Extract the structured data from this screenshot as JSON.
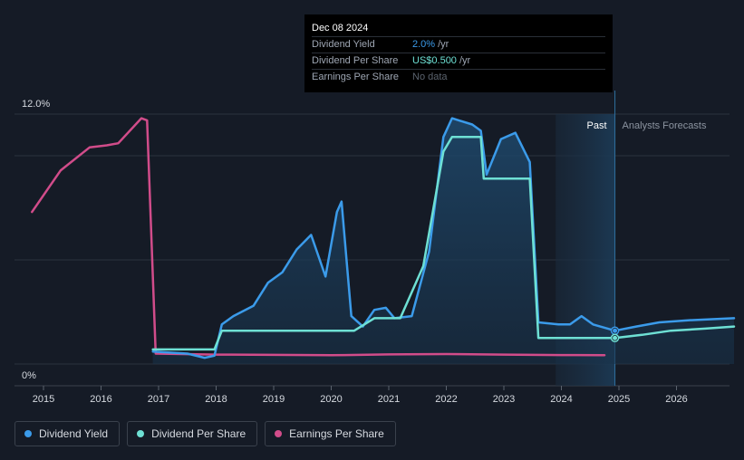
{
  "tooltip": {
    "date": "Dec 08 2024",
    "rows": [
      {
        "label": "Dividend Yield",
        "value": "2.0%",
        "unit": "/yr"
      },
      {
        "label": "Dividend Per Share",
        "value": "US$0.500",
        "unit": "/yr"
      },
      {
        "label": "Earnings Per Share",
        "value": "No data",
        "unit": ""
      }
    ]
  },
  "regions": {
    "past_label": "Past",
    "forecast_label": "Analysts Forecasts"
  },
  "legend": [
    {
      "label": "Dividend Yield",
      "color": "#3b9bea"
    },
    {
      "label": "Dividend Per Share",
      "color": "#6ee0d4"
    },
    {
      "label": "Earnings Per Share",
      "color": "#d14c8a"
    }
  ],
  "chart_data": {
    "type": "line",
    "y_axis": {
      "min": 0,
      "max": 12,
      "tick_labels": [
        "12.0%",
        "0%"
      ],
      "gridlines": [
        0,
        5,
        10,
        12
      ]
    },
    "x_axis": {
      "min": 2014.8,
      "max": 2027.0,
      "ticks": [
        2015,
        2016,
        2017,
        2018,
        2019,
        2020,
        2021,
        2022,
        2023,
        2024,
        2025,
        2026
      ]
    },
    "past_region": {
      "start": 2023.9,
      "end": 2024.93
    },
    "series": [
      {
        "name": "Dividend Yield",
        "color": "#3b9bea",
        "points": [
          [
            2016.9,
            0.6
          ],
          [
            2017.5,
            0.5
          ],
          [
            2017.8,
            0.3
          ],
          [
            2017.97,
            0.4
          ],
          [
            2018.1,
            1.9
          ],
          [
            2018.3,
            2.3
          ],
          [
            2018.65,
            2.8
          ],
          [
            2018.9,
            3.9
          ],
          [
            2019.15,
            4.4
          ],
          [
            2019.4,
            5.5
          ],
          [
            2019.65,
            6.2
          ],
          [
            2019.9,
            4.2
          ],
          [
            2020.1,
            7.3
          ],
          [
            2020.18,
            7.8
          ],
          [
            2020.35,
            2.3
          ],
          [
            2020.55,
            1.8
          ],
          [
            2020.75,
            2.6
          ],
          [
            2020.95,
            2.7
          ],
          [
            2021.1,
            2.2
          ],
          [
            2021.4,
            2.3
          ],
          [
            2021.7,
            5.4
          ],
          [
            2021.95,
            10.9
          ],
          [
            2022.1,
            11.8
          ],
          [
            2022.45,
            11.5
          ],
          [
            2022.6,
            11.2
          ],
          [
            2022.7,
            9.1
          ],
          [
            2022.95,
            10.8
          ],
          [
            2023.2,
            11.1
          ],
          [
            2023.45,
            9.7
          ],
          [
            2023.6,
            2.0
          ],
          [
            2023.95,
            1.9
          ],
          [
            2024.15,
            1.9
          ],
          [
            2024.35,
            2.3
          ],
          [
            2024.55,
            1.9
          ],
          [
            2024.93,
            1.6
          ],
          [
            2025.3,
            1.8
          ],
          [
            2025.7,
            2.0
          ],
          [
            2026.2,
            2.1
          ],
          [
            2027.0,
            2.2
          ]
        ]
      },
      {
        "name": "Dividend Per Share",
        "color": "#6ee0d4",
        "points": [
          [
            2016.9,
            0.7
          ],
          [
            2017.97,
            0.7
          ],
          [
            2018.1,
            1.6
          ],
          [
            2020.4,
            1.6
          ],
          [
            2020.75,
            2.2
          ],
          [
            2021.2,
            2.2
          ],
          [
            2021.6,
            4.7
          ],
          [
            2021.95,
            10.2
          ],
          [
            2022.1,
            10.9
          ],
          [
            2022.6,
            10.9
          ],
          [
            2022.65,
            8.9
          ],
          [
            2023.45,
            8.9
          ],
          [
            2023.6,
            1.25
          ],
          [
            2024.93,
            1.25
          ],
          [
            2025.4,
            1.4
          ],
          [
            2025.9,
            1.6
          ],
          [
            2026.5,
            1.7
          ],
          [
            2027.0,
            1.8
          ]
        ]
      },
      {
        "name": "Earnings Per Share",
        "color": "#d14c8a",
        "points": [
          [
            2014.8,
            7.3
          ],
          [
            2015.3,
            9.3
          ],
          [
            2015.8,
            10.4
          ],
          [
            2016.1,
            10.5
          ],
          [
            2016.3,
            10.6
          ],
          [
            2016.7,
            11.8
          ],
          [
            2016.8,
            11.7
          ],
          [
            2016.95,
            0.5
          ],
          [
            2018.0,
            0.45
          ],
          [
            2019.0,
            0.44
          ],
          [
            2020.0,
            0.42
          ],
          [
            2021.0,
            0.46
          ],
          [
            2022.0,
            0.48
          ],
          [
            2023.0,
            0.45
          ],
          [
            2024.0,
            0.43
          ],
          [
            2024.75,
            0.42
          ]
        ]
      }
    ]
  }
}
